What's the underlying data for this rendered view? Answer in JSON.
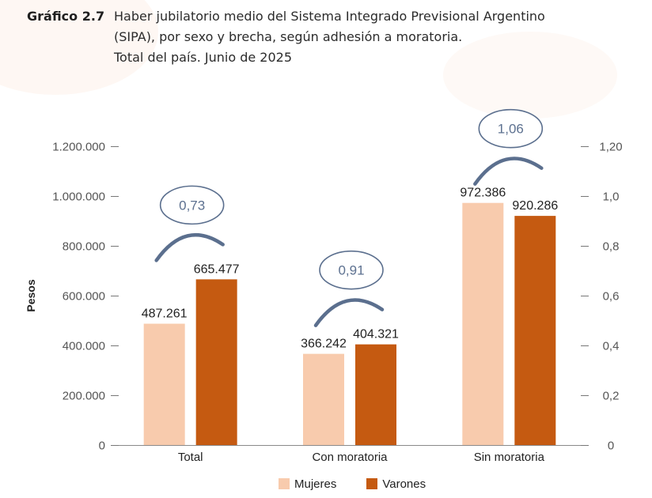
{
  "title": {
    "label": "Gráfico 2.7",
    "lines": [
      "Haber jubilatorio medio del Sistema Integrado Previsional Argentino",
      "(SIPA), por sexo y brecha, según adhesión a moratoria.",
      "Total del país. Junio de 2025"
    ]
  },
  "colors": {
    "mujeres": "#F8CBAD",
    "varones": "#C55A11",
    "ellipse": "#5B6F8E",
    "text": "#333333"
  },
  "chart_data": {
    "type": "bar",
    "title": "Haber jubilatorio medio del Sistema Integrado Previsional Argentino (SIPA), por sexo y brecha, según adhesión a moratoria. Total del país. Junio de 2025",
    "categories": [
      "Total",
      "Con moratoria",
      "Sin moratoria"
    ],
    "series": [
      {
        "name": "Mujeres",
        "values": [
          487261,
          366242,
          972386
        ],
        "labels": [
          "487.261",
          "366.242",
          "972.386"
        ]
      },
      {
        "name": "Varones",
        "values": [
          665477,
          404321,
          920286
        ],
        "labels": [
          "665.477",
          "404.321",
          "920.286"
        ]
      }
    ],
    "brecha": {
      "values": [
        0.73,
        0.91,
        1.06
      ],
      "labels": [
        "0,73",
        "0,91",
        "1,06"
      ]
    },
    "ylabel": "Pesos",
    "xlabel": "",
    "ylim": [
      0,
      1200000
    ],
    "y_ticks": [
      "0",
      "200.000",
      "400.000",
      "600.000",
      "800.000",
      "1.000.000",
      "1.200.000"
    ],
    "y2lim": [
      0,
      1.2
    ],
    "y2_ticks": [
      "0",
      "0,2",
      "0,4",
      "0,6",
      "0,8",
      "1,0",
      "1,20"
    ],
    "legend": [
      "Mujeres",
      "Varones"
    ],
    "legend_position": "bottom-center",
    "grid": false
  }
}
